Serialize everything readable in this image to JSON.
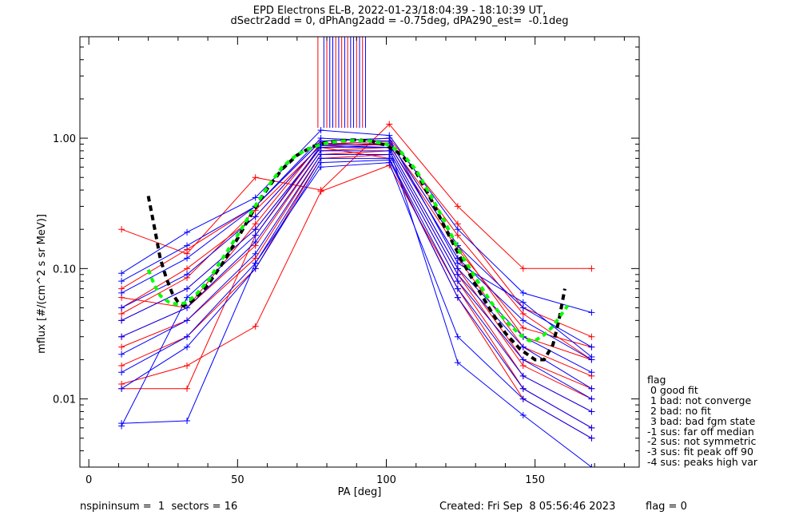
{
  "title_line1": "EPD Electrons EL-B, 2022-01-23/18:04:39 - 18:10:39 UT,",
  "title_line2": "dSectr2add = 0, dPhAng2add = -0.75deg, dPA290_est=  -0.1deg",
  "footer": {
    "left": "nspininsum =  1  sectors = 16",
    "created": "Created: Fri Sep  8 05:56:46 2023",
    "flag": "flag = 0"
  },
  "legend": {
    "title": "flag",
    "items": [
      " 0 good fit",
      " 1 bad: not converge",
      " 2 bad: no fit",
      " 3 bad: bad fgm state",
      "-1 sus: far off median",
      "-2 sus: not symmetric",
      "-3 sus: fit peak off 90",
      "-4 sus: peaks high var"
    ]
  },
  "colors": {
    "sector_a": "#ff0000",
    "sector_b": "#0000ff",
    "fit_primary": "#000000",
    "fit_secondary": "#00ff00"
  },
  "chart_data": {
    "type": "line",
    "xlabel": "PA [deg]",
    "ylabel": "mflux [#/(cm^2 s sr MeV)]",
    "xlim": [
      -3,
      185
    ],
    "ylim": [
      0.003,
      6.0
    ],
    "ylog": true,
    "xticks": [
      0,
      50,
      100,
      150
    ],
    "yticks": [
      {
        "v": 0.01,
        "label": "0.01"
      },
      {
        "v": 0.1,
        "label": "0.10"
      },
      {
        "v": 1.0,
        "label": "1.00"
      }
    ],
    "x": [
      11,
      33,
      56,
      78,
      101,
      124,
      146,
      169
    ],
    "series": [
      {
        "color": "red",
        "values": [
          0.2,
          0.13,
          0.5,
          0.4,
          1.28,
          0.3,
          0.1,
          0.1
        ]
      },
      {
        "color": "red",
        "values": [
          0.07,
          0.14,
          0.3,
          0.95,
          1.0,
          0.22,
          0.05,
          0.03
        ]
      },
      {
        "color": "red",
        "values": [
          0.05,
          0.1,
          0.25,
          0.9,
          0.95,
          0.15,
          0.03,
          0.02
        ]
      },
      {
        "color": "red",
        "values": [
          0.04,
          0.07,
          0.2,
          0.85,
          0.9,
          0.12,
          0.025,
          0.015
        ]
      },
      {
        "color": "red",
        "values": [
          0.03,
          0.05,
          0.15,
          0.8,
          0.85,
          0.1,
          0.02,
          0.012
        ]
      },
      {
        "color": "red",
        "values": [
          0.025,
          0.04,
          0.12,
          0.75,
          0.8,
          0.09,
          0.018,
          0.01
        ]
      },
      {
        "color": "red",
        "values": [
          0.018,
          0.03,
          0.1,
          0.7,
          0.75,
          0.08,
          0.015,
          0.008
        ]
      },
      {
        "color": "red",
        "values": [
          0.013,
          0.018,
          0.036,
          0.39,
          0.62,
          0.07,
          0.012,
          0.006
        ]
      },
      {
        "color": "red",
        "values": [
          0.012,
          0.012,
          0.18,
          0.85,
          0.7,
          0.06,
          0.01,
          0.005
        ]
      },
      {
        "color": "red",
        "values": [
          0.06,
          0.05,
          0.22,
          0.92,
          0.88,
          0.14,
          0.035,
          0.025
        ]
      },
      {
        "color": "red",
        "values": [
          0.045,
          0.085,
          0.28,
          0.88,
          0.92,
          0.18,
          0.045,
          0.02
        ]
      },
      {
        "color": "blue",
        "values": [
          0.092,
          0.19,
          0.35,
          1.15,
          1.05,
          0.2,
          0.065,
          0.046
        ]
      },
      {
        "color": "blue",
        "values": [
          0.065,
          0.12,
          0.3,
          1.0,
          0.95,
          0.15,
          0.05,
          0.025
        ]
      },
      {
        "color": "blue",
        "values": [
          0.05,
          0.09,
          0.25,
          0.9,
          0.9,
          0.12,
          0.04,
          0.02
        ]
      },
      {
        "color": "blue",
        "values": [
          0.04,
          0.07,
          0.2,
          0.85,
          0.85,
          0.1,
          0.03,
          0.016
        ]
      },
      {
        "color": "blue",
        "values": [
          0.03,
          0.05,
          0.16,
          0.8,
          0.8,
          0.09,
          0.025,
          0.012
        ]
      },
      {
        "color": "blue",
        "values": [
          0.022,
          0.04,
          0.13,
          0.75,
          0.75,
          0.08,
          0.02,
          0.01
        ]
      },
      {
        "color": "blue",
        "values": [
          0.016,
          0.03,
          0.11,
          0.7,
          0.7,
          0.07,
          0.015,
          0.008
        ]
      },
      {
        "color": "blue",
        "values": [
          0.012,
          0.025,
          0.1,
          0.65,
          0.68,
          0.06,
          0.012,
          0.006
        ]
      },
      {
        "color": "blue",
        "values": [
          0.0065,
          0.0068,
          0.11,
          0.6,
          0.65,
          0.03,
          0.01,
          0.005
        ]
      },
      {
        "color": "blue",
        "values": [
          0.0062,
          0.06,
          0.18,
          0.88,
          0.85,
          0.019,
          0.0075,
          0.003
        ]
      },
      {
        "color": "blue",
        "values": [
          0.08,
          0.15,
          0.3,
          0.95,
          1.0,
          0.11,
          0.055,
          0.021
        ]
      }
    ],
    "fits": [
      {
        "name_hidden": true,
        "color": "black",
        "dash": "7,5",
        "points": [
          [
            20,
            0.36
          ],
          [
            22,
            0.21
          ],
          [
            24,
            0.12
          ],
          [
            26,
            0.085
          ],
          [
            28,
            0.065
          ],
          [
            30,
            0.055
          ],
          [
            32,
            0.052
          ],
          [
            35,
            0.057
          ],
          [
            40,
            0.075
          ],
          [
            45,
            0.11
          ],
          [
            50,
            0.17
          ],
          [
            55,
            0.27
          ],
          [
            60,
            0.41
          ],
          [
            65,
            0.58
          ],
          [
            70,
            0.74
          ],
          [
            75,
            0.86
          ],
          [
            80,
            0.93
          ],
          [
            85,
            0.96
          ],
          [
            90,
            0.97
          ],
          [
            95,
            0.95
          ],
          [
            100,
            0.88
          ],
          [
            105,
            0.75
          ],
          [
            110,
            0.55
          ],
          [
            115,
            0.34
          ],
          [
            120,
            0.2
          ],
          [
            125,
            0.12
          ],
          [
            130,
            0.075
          ],
          [
            135,
            0.048
          ],
          [
            140,
            0.032
          ],
          [
            145,
            0.024
          ],
          [
            150,
            0.02
          ],
          [
            153,
            0.02
          ],
          [
            156,
            0.026
          ],
          [
            158,
            0.04
          ],
          [
            160,
            0.07
          ]
        ]
      },
      {
        "name_hidden": true,
        "color": "lime",
        "dash": "6,5",
        "points": [
          [
            20,
            0.098
          ],
          [
            22,
            0.075
          ],
          [
            24,
            0.062
          ],
          [
            27,
            0.055
          ],
          [
            30,
            0.053
          ],
          [
            33,
            0.055
          ],
          [
            36,
            0.063
          ],
          [
            40,
            0.08
          ],
          [
            45,
            0.12
          ],
          [
            50,
            0.18
          ],
          [
            55,
            0.28
          ],
          [
            60,
            0.42
          ],
          [
            65,
            0.6
          ],
          [
            70,
            0.75
          ],
          [
            75,
            0.85
          ],
          [
            80,
            0.92
          ],
          [
            85,
            0.95
          ],
          [
            90,
            0.96
          ],
          [
            95,
            0.95
          ],
          [
            100,
            0.9
          ],
          [
            105,
            0.78
          ],
          [
            110,
            0.57
          ],
          [
            115,
            0.36
          ],
          [
            120,
            0.22
          ],
          [
            125,
            0.13
          ],
          [
            130,
            0.085
          ],
          [
            135,
            0.056
          ],
          [
            140,
            0.04
          ],
          [
            145,
            0.031
          ],
          [
            148,
            0.028
          ],
          [
            150,
            0.028
          ],
          [
            153,
            0.031
          ],
          [
            156,
            0.036
          ],
          [
            159,
            0.045
          ],
          [
            161,
            0.052
          ]
        ]
      }
    ],
    "spikes_x": [
      77,
      79,
      80,
      81,
      82,
      83,
      84,
      85,
      86,
      87,
      88,
      89,
      90,
      91,
      92,
      93
    ],
    "spikes_colors": [
      "red",
      "blue",
      "red",
      "blue",
      "blue",
      "red",
      "blue",
      "red",
      "blue",
      "red",
      "blue",
      "blue",
      "red",
      "blue",
      "red",
      "blue"
    ]
  }
}
